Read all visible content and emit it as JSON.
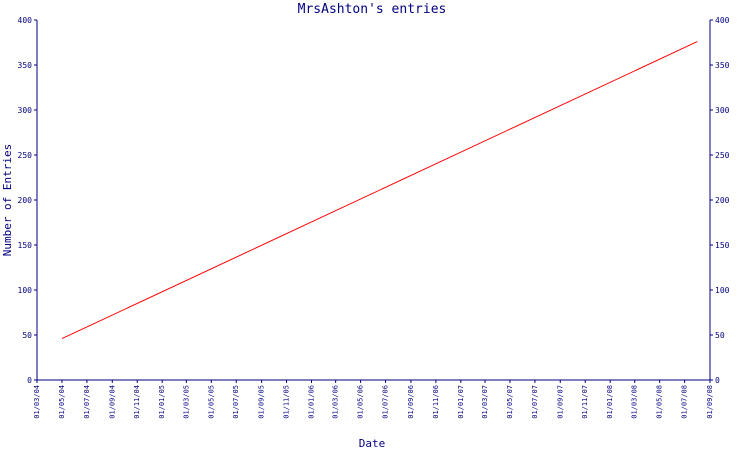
{
  "chart_data": {
    "type": "line",
    "title": "MrsAshton's entries",
    "xlabel": "Date",
    "ylabel": "Number of Entries",
    "ylim": [
      0,
      400
    ],
    "y_ticks": [
      0,
      50,
      100,
      150,
      200,
      250,
      300,
      350,
      400
    ],
    "x_ticks": [
      "01/03/04",
      "01/05/04",
      "01/07/04",
      "01/09/04",
      "01/11/04",
      "01/01/05",
      "01/03/05",
      "01/05/05",
      "01/07/05",
      "01/09/05",
      "01/11/05",
      "01/01/06",
      "01/03/06",
      "01/05/06",
      "01/07/06",
      "01/09/06",
      "01/11/06",
      "01/01/07",
      "01/03/07",
      "01/05/07",
      "01/07/07",
      "01/09/07",
      "01/11/07",
      "01/01/08",
      "01/03/08",
      "01/05/08",
      "01/07/08",
      "01/09/08"
    ],
    "xlim": [
      "01/03/04",
      "01/09/08"
    ],
    "grid": false,
    "right_axis_mirrors_left": true,
    "colors": {
      "axis": "#000080",
      "series": "#ff0000"
    },
    "series": [
      {
        "x": [
          "01/05/04",
          "01/08/08"
        ],
        "values": [
          46,
          376
        ]
      }
    ]
  }
}
